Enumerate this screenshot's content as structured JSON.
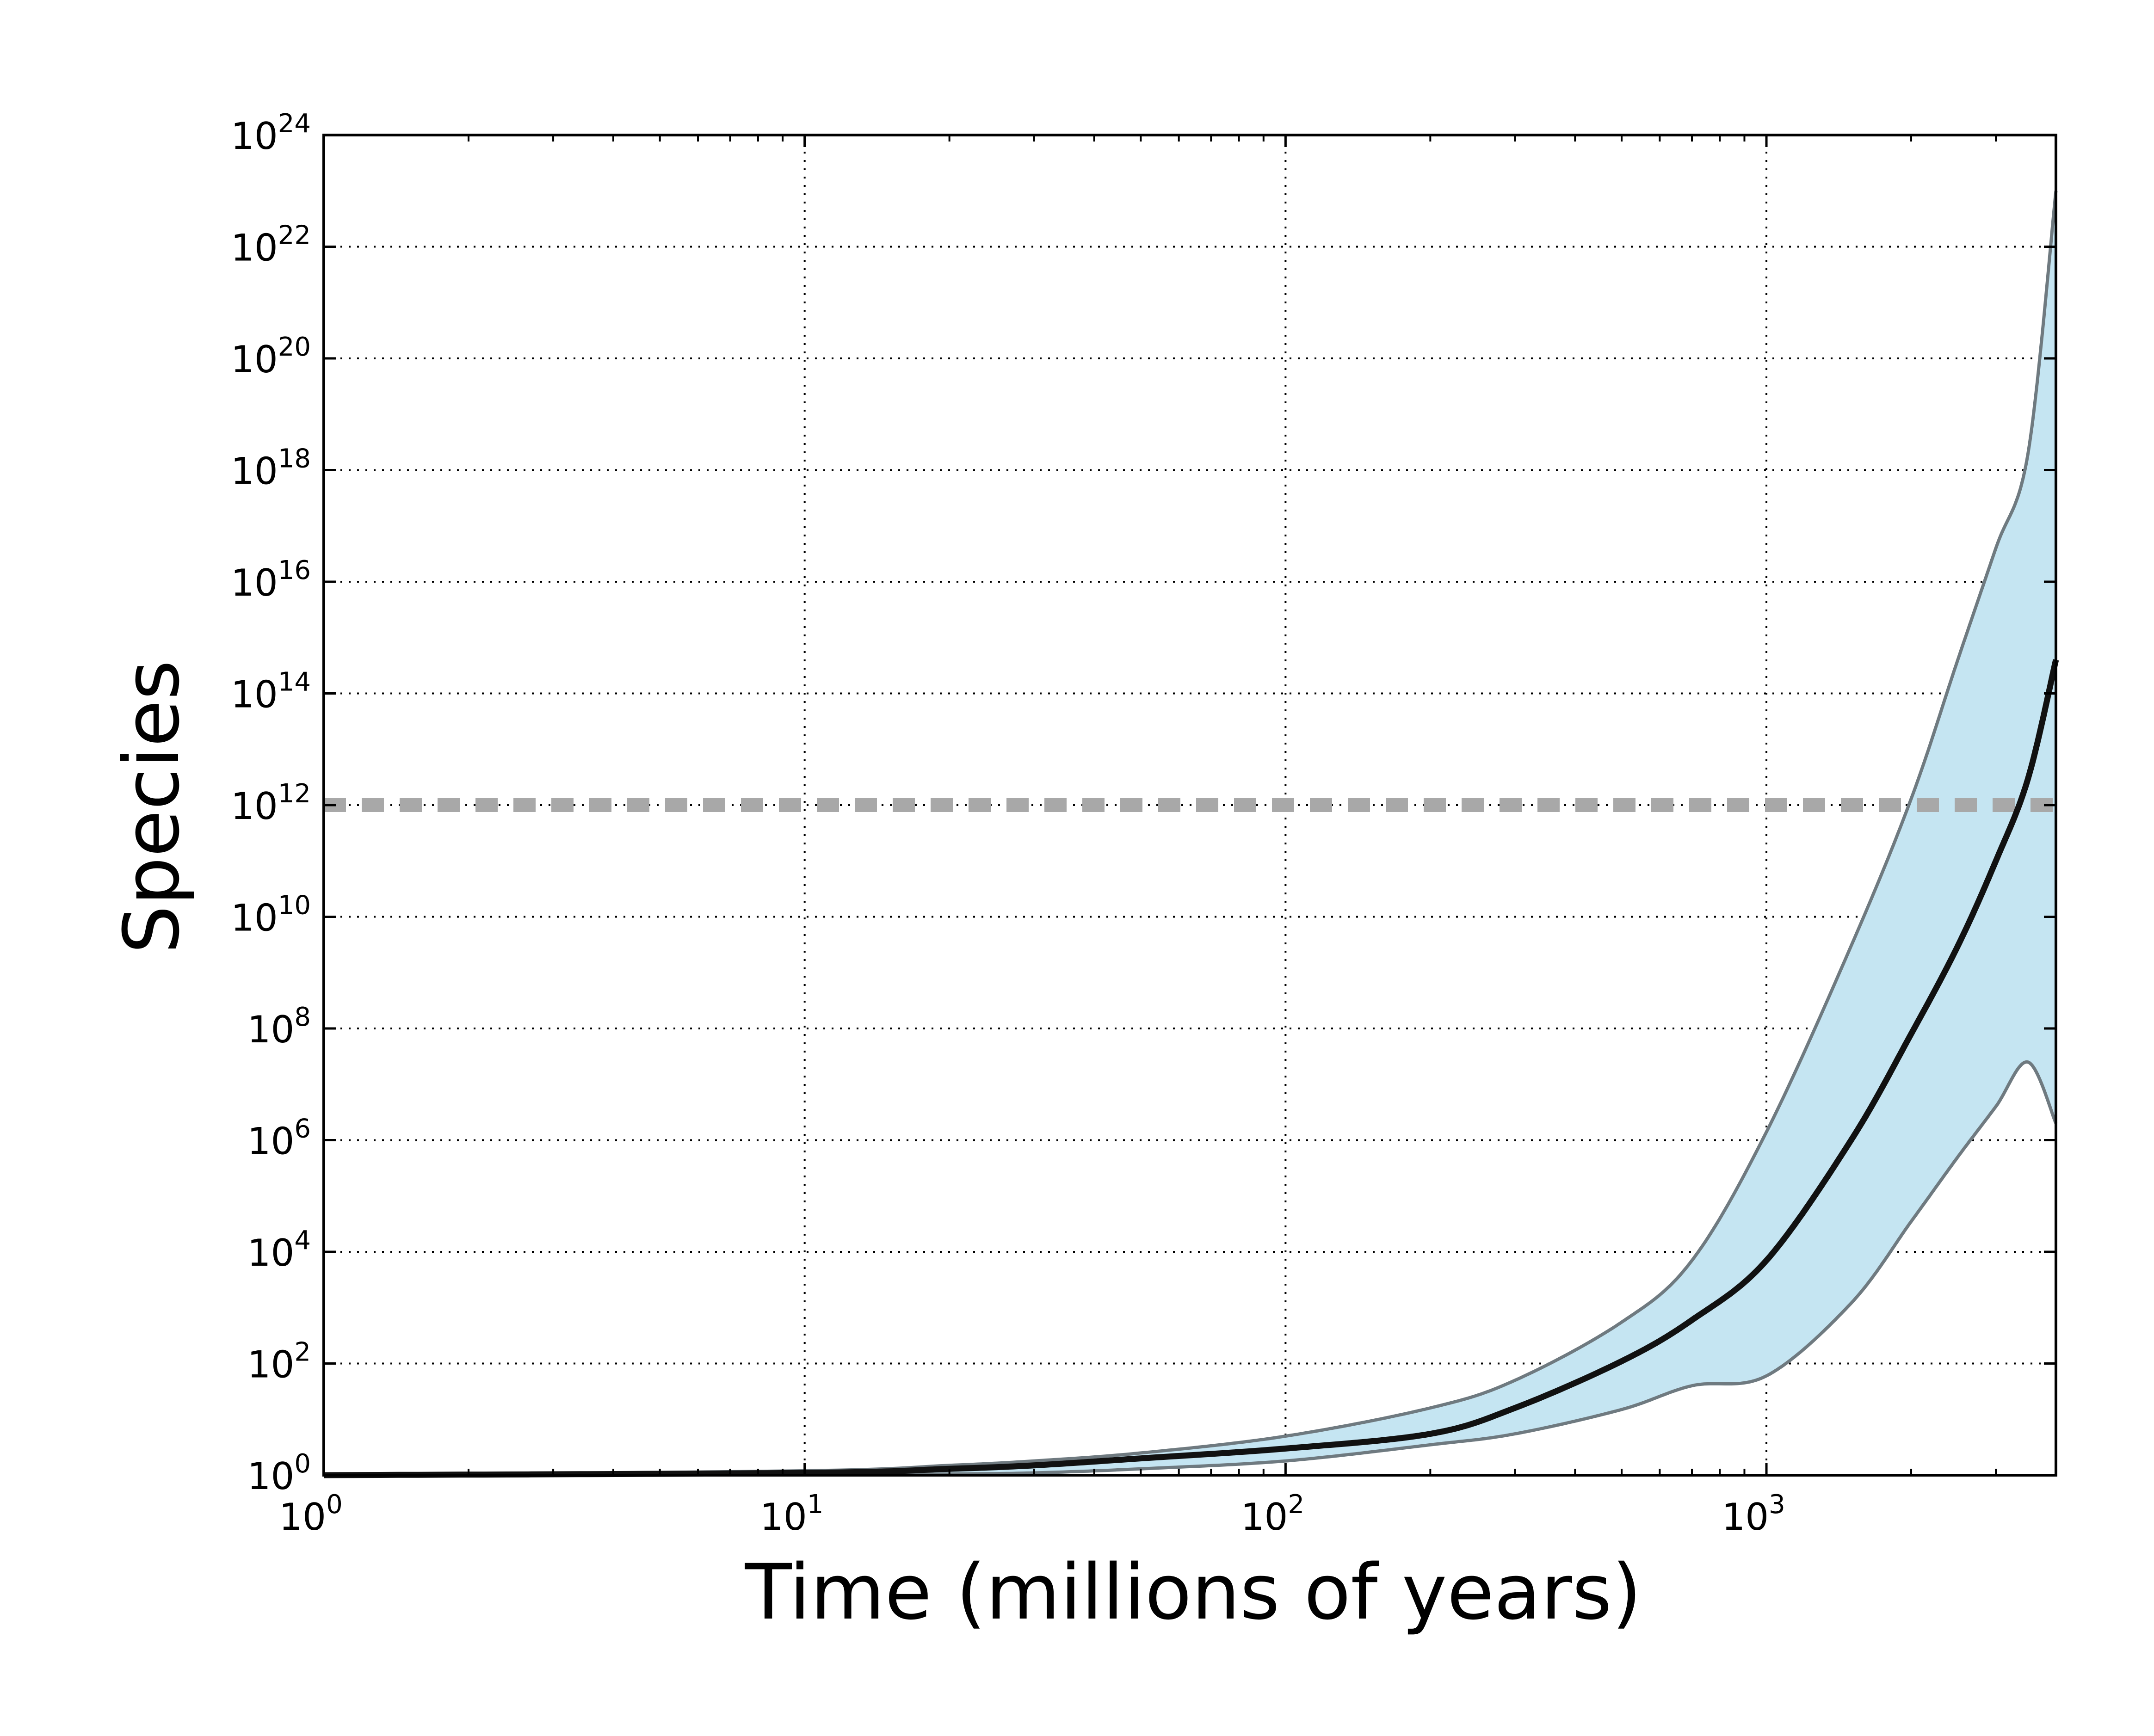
{
  "chart_data": {
    "type": "area",
    "xlabel": "Time (millions of years)",
    "ylabel": "Species",
    "x_scale": "log",
    "y_scale": "log",
    "xlim": [
      1,
      4000
    ],
    "ylim": [
      1,
      1e+24
    ],
    "grid": true,
    "grid_style": "dotted",
    "x_ticks": [
      {
        "value": 1,
        "base": "10",
        "exp": "0"
      },
      {
        "value": 10,
        "base": "10",
        "exp": "1"
      },
      {
        "value": 100,
        "base": "10",
        "exp": "2"
      },
      {
        "value": 1000,
        "base": "10",
        "exp": "3"
      }
    ],
    "y_ticks": [
      {
        "value": 1,
        "base": "10",
        "exp": "0"
      },
      {
        "value": 100.0,
        "base": "10",
        "exp": "2"
      },
      {
        "value": 10000.0,
        "base": "10",
        "exp": "4"
      },
      {
        "value": 1000000.0,
        "base": "10",
        "exp": "6"
      },
      {
        "value": 100000000.0,
        "base": "10",
        "exp": "8"
      },
      {
        "value": 10000000000.0,
        "base": "10",
        "exp": "10"
      },
      {
        "value": 1000000000000.0,
        "base": "10",
        "exp": "12"
      },
      {
        "value": 100000000000000.0,
        "base": "10",
        "exp": "14"
      },
      {
        "value": 1e+16,
        "base": "10",
        "exp": "16"
      },
      {
        "value": 1e+18,
        "base": "10",
        "exp": "18"
      },
      {
        "value": 1e+20,
        "base": "10",
        "exp": "20"
      },
      {
        "value": 1e+22,
        "base": "10",
        "exp": "22"
      },
      {
        "value": 1e+24,
        "base": "10",
        "exp": "24"
      }
    ],
    "x": [
      1,
      10,
      20,
      30,
      50,
      100,
      200,
      300,
      500,
      700,
      1000,
      1500,
      2000,
      2500,
      3000,
      3500,
      4000
    ],
    "band": {
      "upper": [
        1,
        1.2,
        1.5,
        1.8,
        2.5,
        5,
        16,
        50,
        550,
        7000,
        1400000.0,
        3000000000.0,
        1300000000000.0,
        400000000000000.0,
        4e+16,
        2e+18,
        1e+23
      ],
      "lower": [
        1,
        1.02,
        1.05,
        1.1,
        1.3,
        1.8,
        3.5,
        5.5,
        15,
        40,
        60,
        1200,
        35000.0,
        500000.0,
        4000000.0,
        25000000.0,
        2000000.0
      ],
      "fill_color": "#c5e5f2",
      "edge_color": "#6f7a80"
    },
    "series": [
      {
        "values": [
          1,
          1.1,
          1.3,
          1.5,
          2,
          3,
          5.5,
          16,
          110,
          600,
          7000,
          1000000.0,
          80000000.0,
          3000000000.0,
          100000000000.0,
          3000000000000.0,
          400000000000000.0
        ],
        "color": "#111111"
      }
    ],
    "reference_line": {
      "y": 1000000000000.0,
      "color": "#a8a8a8",
      "style": "dashed"
    }
  }
}
